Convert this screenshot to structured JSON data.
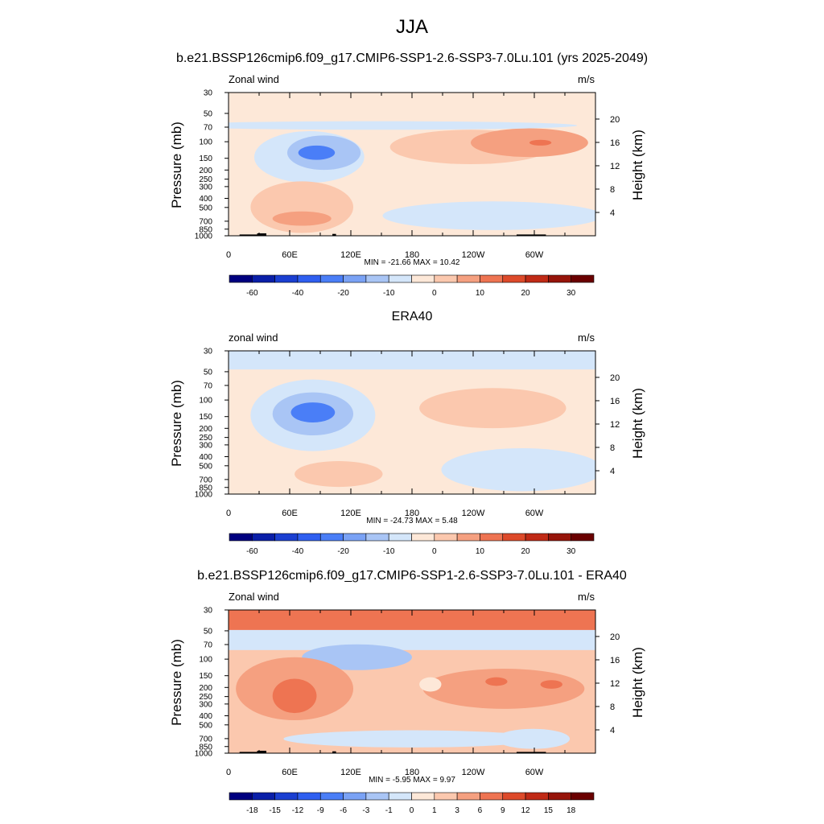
{
  "page": {
    "main_title": "JJA"
  },
  "colors": {
    "land": "#000000",
    "axis": "#000000",
    "fill_scale": [
      "#00007f",
      "#0a1fa8",
      "#1b3fd1",
      "#2f5ff0",
      "#4a7ef7",
      "#7aa2f5",
      "#a9c5f5",
      "#d4e6fa",
      "#fde8d8",
      "#fbc8ae",
      "#f5a080",
      "#ee7452",
      "#dd4a2a",
      "#c02a16",
      "#96140a",
      "#6a0000"
    ]
  },
  "chart_data": [
    {
      "type": "contour",
      "title": "b.e21.BSSP126cmip6.f09_g17.CMIP6-SSP1-2.6-SSP3-7.0Lu.101 (yrs 2025-2049)",
      "left_label": "Zonal wind",
      "right_label": "m/s",
      "xlabel": "",
      "ylabel": "Pressure (mb)",
      "ylabel_right": "Height (km)",
      "x_ticks": [
        "0",
        "60E",
        "120E",
        "180",
        "120W",
        "60W"
      ],
      "y_ticks": [
        "30",
        "50",
        "70",
        "100",
        "150",
        "200",
        "250",
        "300",
        "400",
        "500",
        "700",
        "850",
        "1000"
      ],
      "y_right_ticks": [
        "20",
        "16",
        "12",
        "8",
        "4"
      ],
      "min_max": "MIN = -21.66  MAX =  10.42",
      "colorbar_labels": [
        "-60",
        "-40",
        "-20",
        "-10",
        "0",
        "10",
        "20",
        "30"
      ],
      "colorbar_levels": [
        -70,
        -60,
        -50,
        -40,
        -30,
        -20,
        -15,
        -10,
        -5,
        0,
        5,
        10,
        15,
        20,
        25,
        30
      ]
    },
    {
      "type": "contour",
      "title": "ERA40",
      "left_label": "zonal wind",
      "right_label": "m/s",
      "xlabel": "",
      "ylabel": "Pressure (mb)",
      "ylabel_right": "Height (km)",
      "x_ticks": [
        "0",
        "60E",
        "120E",
        "180",
        "120W",
        "60W"
      ],
      "y_ticks": [
        "30",
        "50",
        "70",
        "100",
        "150",
        "200",
        "250",
        "300",
        "400",
        "500",
        "700",
        "850",
        "1000"
      ],
      "y_right_ticks": [
        "20",
        "16",
        "12",
        "8",
        "4"
      ],
      "min_max": "MIN = -24.73  MAX =   5.48",
      "colorbar_labels": [
        "-60",
        "-40",
        "-20",
        "-10",
        "0",
        "10",
        "20",
        "30"
      ],
      "colorbar_levels": [
        -70,
        -60,
        -50,
        -40,
        -30,
        -20,
        -15,
        -10,
        -5,
        0,
        5,
        10,
        15,
        20,
        25,
        30
      ]
    },
    {
      "type": "contour",
      "title": "b.e21.BSSP126cmip6.f09_g17.CMIP6-SSP1-2.6-SSP3-7.0Lu.101 - ERA40",
      "left_label": "Zonal wind",
      "right_label": "m/s",
      "xlabel": "",
      "ylabel": "Pressure (mb)",
      "ylabel_right": "Height (km)",
      "x_ticks": [
        "0",
        "60E",
        "120E",
        "180",
        "120W",
        "60W"
      ],
      "y_ticks": [
        "30",
        "50",
        "70",
        "100",
        "150",
        "200",
        "250",
        "300",
        "400",
        "500",
        "700",
        "850",
        "1000"
      ],
      "y_right_ticks": [
        "20",
        "16",
        "12",
        "8",
        "4"
      ],
      "min_max": "MIN =  -5.95  MAX =   9.97",
      "colorbar_labels": [
        "-18",
        "-15",
        "-12",
        "-9",
        "-6",
        "-3",
        "-1",
        "0",
        "1",
        "3",
        "6",
        "9",
        "12",
        "15",
        "18"
      ],
      "colorbar_levels": [
        -21,
        -18,
        -15,
        -12,
        -9,
        -6,
        -3,
        -1,
        0,
        1,
        3,
        6,
        9,
        12,
        15,
        18
      ]
    }
  ]
}
